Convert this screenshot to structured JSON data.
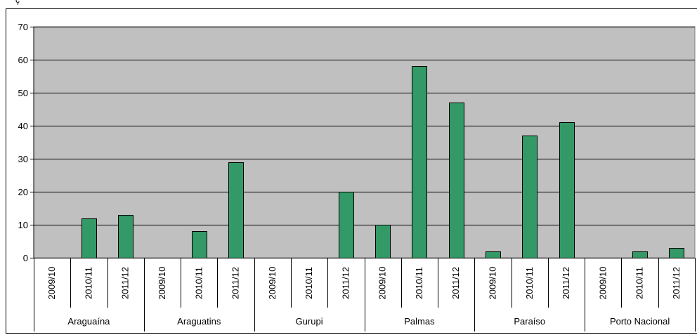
{
  "chart_data": {
    "type": "bar",
    "title": "",
    "xlabel": "",
    "ylabel": "",
    "ylim": [
      0,
      70
    ],
    "yticks": [
      0,
      10,
      20,
      30,
      40,
      50,
      60,
      70
    ],
    "grid": true,
    "legend": "none",
    "groups": [
      "Araguaína",
      "Araguatins",
      "Gurupi",
      "Palmas",
      "Paraíso",
      "Porto Nacional"
    ],
    "categories": [
      "2009/10",
      "2010/11",
      "2011/12"
    ],
    "values": [
      [
        0,
        12,
        13
      ],
      [
        0,
        8,
        29
      ],
      [
        0,
        0,
        20
      ],
      [
        10,
        58,
        47
      ],
      [
        2,
        37,
        41
      ],
      [
        0,
        2,
        3
      ]
    ],
    "colors": {
      "bar": "#339966",
      "plot_background": "#c0c0c0",
      "gridline": "#000000"
    }
  }
}
